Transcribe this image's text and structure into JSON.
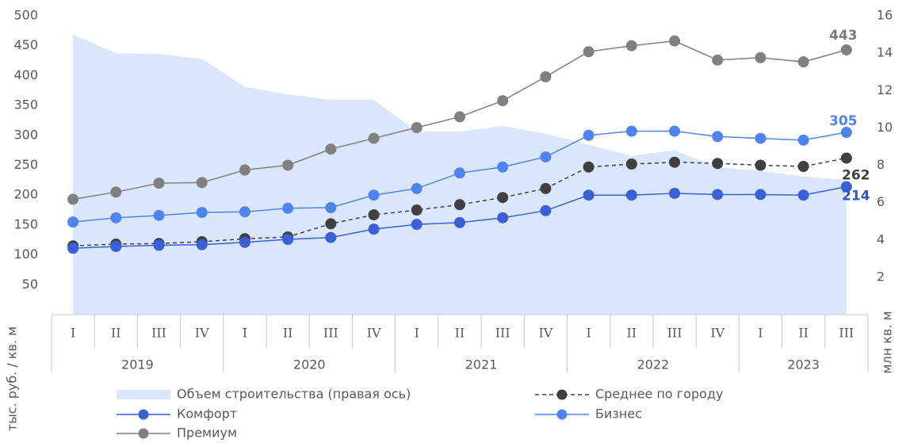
{
  "chart_data": {
    "type": "line",
    "groups": [
      {
        "label": "2019",
        "categories": [
          "I",
          "II",
          "III",
          "IV"
        ]
      },
      {
        "label": "2020",
        "categories": [
          "I",
          "II",
          "III",
          "IV"
        ]
      },
      {
        "label": "2021",
        "categories": [
          "I",
          "II",
          "III",
          "IV"
        ]
      },
      {
        "label": "2022",
        "categories": [
          "I",
          "II",
          "III",
          "IV"
        ]
      },
      {
        "label": "2023",
        "categories": [
          "I",
          "II",
          "III"
        ]
      }
    ],
    "y_label": "тыс. руб. / кв. м",
    "y2_label": "млн кв. м",
    "ylim": [
      0,
      500
    ],
    "yticks": [
      50,
      100,
      150,
      200,
      250,
      300,
      350,
      400,
      450,
      500
    ],
    "y2lim": [
      0,
      16
    ],
    "y2ticks": [
      2,
      4,
      6,
      8,
      10,
      12,
      14,
      16
    ],
    "series": [
      {
        "name": "Объем строительства (правая ось)",
        "type": "area",
        "axis": "y2",
        "color": "#dae6fb",
        "values": [
          15.0,
          14.0,
          13.95,
          13.7,
          12.2,
          11.8,
          11.5,
          11.5,
          9.8,
          9.8,
          10.1,
          9.7,
          9.1,
          8.5,
          8.8,
          7.9,
          7.7,
          7.4,
          7.2
        ]
      },
      {
        "name": "Среднее по городу",
        "dashed": true,
        "color": "#404040",
        "label_color": "#404040",
        "values": [
          115,
          118,
          119,
          122,
          127,
          130,
          152,
          167,
          175,
          184,
          196,
          211,
          247,
          252,
          255,
          253,
          250,
          248,
          262
        ],
        "value_labels": [
          null,
          null,
          null,
          null,
          null,
          null,
          null,
          null,
          null,
          null,
          null,
          null,
          null,
          null,
          null,
          null,
          null,
          null,
          "262"
        ]
      },
      {
        "name": "Комфорт",
        "color": "#3a5fd6",
        "label_color": "#2f55cc",
        "values": [
          111,
          114,
          116,
          117,
          121,
          126,
          129,
          143,
          151,
          154,
          162,
          174,
          200,
          200,
          203,
          201,
          201,
          200,
          214
        ],
        "value_labels": [
          null,
          null,
          null,
          null,
          null,
          null,
          null,
          null,
          null,
          null,
          null,
          null,
          null,
          null,
          null,
          null,
          null,
          null,
          "214"
        ]
      },
      {
        "name": "Бизнес",
        "color": "#4d84f0",
        "label_color": "#4d84f0",
        "values": [
          155,
          162,
          166,
          171,
          172,
          178,
          179,
          200,
          211,
          237,
          247,
          264,
          300,
          307,
          307,
          298,
          295,
          292,
          305
        ],
        "value_labels": [
          null,
          null,
          null,
          null,
          null,
          null,
          null,
          null,
          null,
          null,
          null,
          null,
          null,
          null,
          null,
          null,
          null,
          null,
          "305"
        ]
      },
      {
        "name": "Премиум",
        "color": "#808080",
        "label_color": "#7a7a7a",
        "values": [
          193,
          205,
          220,
          221,
          242,
          250,
          277,
          295,
          313,
          331,
          358,
          398,
          440,
          450,
          458,
          426,
          430,
          423,
          443
        ],
        "value_labels": [
          null,
          null,
          null,
          null,
          null,
          null,
          null,
          null,
          null,
          null,
          null,
          null,
          null,
          null,
          null,
          null,
          null,
          null,
          "443"
        ]
      }
    ]
  }
}
